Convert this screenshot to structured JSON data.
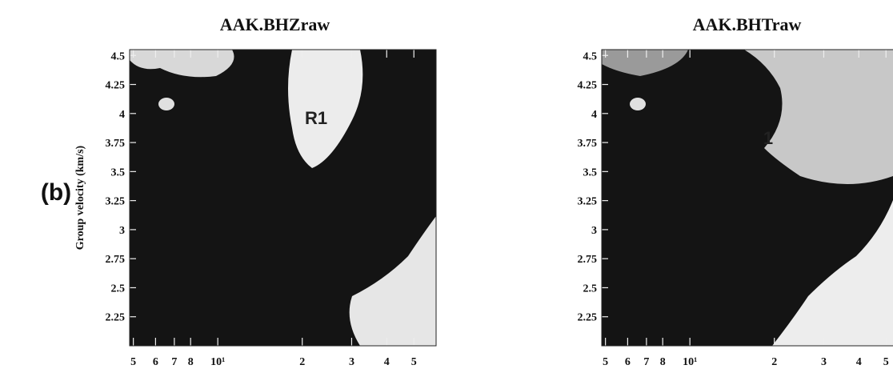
{
  "panel_label": "(b)",
  "chart_data": [
    {
      "type": "image",
      "title": "AAK.BHZraw",
      "y_label": "Group velocity (km/s)",
      "annotation": "R1",
      "xscale": "log",
      "xlim": [
        4.85,
        60
      ],
      "ylim": [
        2.0,
        4.55
      ],
      "xticks": [
        5,
        6,
        7,
        8,
        {
          "value": 10,
          "label": "10¹"
        },
        2,
        3,
        4,
        5
      ],
      "xtick_values": [
        5,
        6,
        7,
        8,
        10,
        20,
        30,
        40,
        50
      ],
      "yticks": [
        4.5,
        4.25,
        4,
        3.75,
        3.5,
        3.25,
        3,
        2.75,
        2.5,
        2.25
      ]
    },
    {
      "type": "image",
      "title": "AAK.BHTraw",
      "annotation": "1",
      "xscale": "log",
      "xlim": [
        4.85,
        60
      ],
      "ylim": [
        2.0,
        4.55
      ],
      "xticks": [
        5,
        6,
        7,
        8,
        {
          "value": 10,
          "label": "10¹"
        },
        2,
        3,
        4,
        5
      ],
      "xtick_values": [
        5,
        6,
        7,
        8,
        10,
        20,
        30,
        40,
        50
      ],
      "yticks": [
        4.5,
        4.25,
        4,
        3.75,
        3.5,
        3.25,
        3,
        2.75,
        2.5,
        2.25
      ]
    }
  ]
}
